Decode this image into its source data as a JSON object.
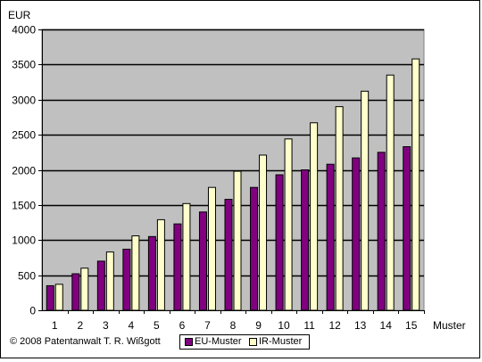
{
  "chart_data": {
    "type": "bar",
    "ylabel": "EUR",
    "xlabel": "Muster",
    "ylim": [
      0,
      4000
    ],
    "yticks": [
      0,
      500,
      1000,
      1500,
      2000,
      2500,
      3000,
      3500,
      4000
    ],
    "categories": [
      "1",
      "2",
      "3",
      "4",
      "5",
      "6",
      "7",
      "8",
      "9",
      "10",
      "11",
      "12",
      "13",
      "14",
      "15"
    ],
    "series": [
      {
        "name": "EU-Muster",
        "color": "#800080",
        "values": [
          350,
          520,
          700,
          870,
          1050,
          1230,
          1400,
          1580,
          1750,
          1930,
          2000,
          2080,
          2170,
          2250,
          2330
        ]
      },
      {
        "name": "IR-Muster",
        "color": "#FFFFCC",
        "values": [
          370,
          600,
          830,
          1060,
          1290,
          1520,
          1750,
          1980,
          2210,
          2440,
          2670,
          2900,
          3120,
          3350,
          3580
        ]
      }
    ],
    "legend": "bottom",
    "grid": true,
    "plot_background": "#C0C0C0"
  },
  "credit": "© 2008 Patentanwalt T. R. Wißgott"
}
